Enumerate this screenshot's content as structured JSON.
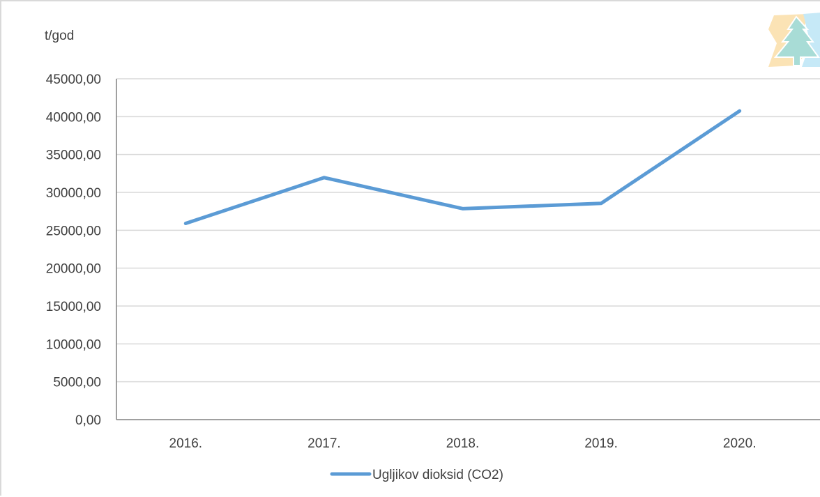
{
  "chart_data": {
    "type": "line",
    "title": "",
    "ylabel": "t/god",
    "xlabel": "",
    "categories": [
      "2016.",
      "2017.",
      "2018.",
      "2019.",
      "2020."
    ],
    "series": [
      {
        "name": "Ugljikov dioksid (CO2)",
        "values": [
          25900,
          31950,
          27850,
          28550,
          40750
        ],
        "color": "#5b9bd5"
      }
    ],
    "ylim": [
      0,
      45000
    ],
    "yticks": [
      "0,00",
      "5000,00",
      "10000,00",
      "15000,00",
      "20000,00",
      "25000,00",
      "30000,00",
      "35000,00",
      "40000,00",
      "45000,00"
    ],
    "ytick_values": [
      0,
      5000,
      10000,
      15000,
      20000,
      25000,
      30000,
      35000,
      40000,
      45000
    ],
    "grid": true,
    "legend_position": "bottom",
    "gridline_color": "#d9d9d9",
    "axis_color": "#808080"
  },
  "logo": {
    "icon": "tree-logo-icon",
    "colors": [
      "#fbe3b5",
      "#a8dcd6",
      "#c6e9f7"
    ]
  }
}
